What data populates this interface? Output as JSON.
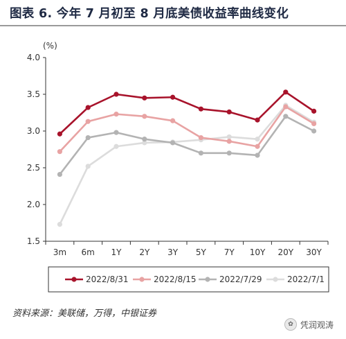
{
  "title": "图表 6. 今年 7 月初至 8 月底美债收益率曲线变化",
  "source": "资料来源：美联储，万得，中银证券",
  "watermark": {
    "text": "凭润观涛",
    "icon": "wechat-icon"
  },
  "chart_data": {
    "type": "line",
    "unit_label": "(%)",
    "categories": [
      "3m",
      "6m",
      "1Y",
      "2Y",
      "3Y",
      "5Y",
      "7Y",
      "10Y",
      "20Y",
      "30Y"
    ],
    "ylim": [
      1.5,
      4.0
    ],
    "yticks": [
      "1.5",
      "2.0",
      "2.5",
      "3.0",
      "3.5",
      "4.0"
    ],
    "legend_position": "bottom",
    "grid": false,
    "series": [
      {
        "name": "2022/8/31",
        "color": "#a8132b",
        "values": [
          2.96,
          3.32,
          3.5,
          3.45,
          3.46,
          3.3,
          3.26,
          3.15,
          3.53,
          3.27
        ]
      },
      {
        "name": "2022/8/15",
        "color": "#e8a3a3",
        "values": [
          2.72,
          3.13,
          3.23,
          3.2,
          3.14,
          2.91,
          2.86,
          2.79,
          3.33,
          3.1
        ]
      },
      {
        "name": "2022/7/29",
        "color": "#b3b3b3",
        "values": [
          2.41,
          2.91,
          2.98,
          2.89,
          2.84,
          2.7,
          2.7,
          2.67,
          3.2,
          3.0
        ]
      },
      {
        "name": "2022/7/1",
        "color": "#dcdcdc",
        "values": [
          1.73,
          2.52,
          2.79,
          2.84,
          2.85,
          2.88,
          2.92,
          2.89,
          3.35,
          3.12
        ]
      }
    ]
  }
}
